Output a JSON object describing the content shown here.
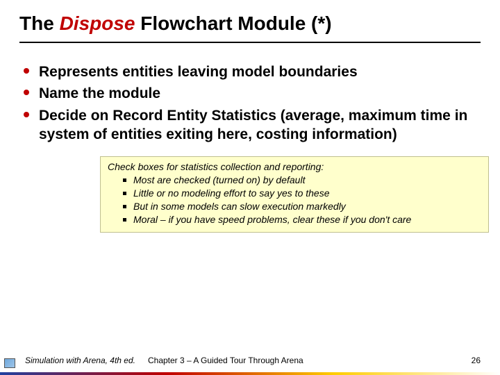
{
  "title": {
    "pre": "The ",
    "highlight": "Dispose",
    "post": " Flowchart Module (*)",
    "highlight_color": "#c00000"
  },
  "bullets": [
    "Represents entities leaving model boundaries",
    "Name the module",
    "Decide on Record Entity Statistics (average, maximum time in system of entities exiting here, costing information)"
  ],
  "note": {
    "heading": "Check boxes for statistics collection and reporting:",
    "items": [
      "Most are checked (turned on) by default",
      "Little or no modeling effort to say yes to these",
      "But in some models can slow execution markedly",
      "Moral – if you have speed problems, clear these if you don't care"
    ],
    "background_color": "#ffffcc",
    "border_color": "#bfbf8f"
  },
  "footer": {
    "book": "Simulation with Arena, 4th ed.",
    "chapter": "Chapter 3 – A Guided Tour Through Arena",
    "page": "26"
  },
  "colors": {
    "bullet_dot": "#c00000",
    "text": "#000000",
    "background": "#ffffff"
  }
}
